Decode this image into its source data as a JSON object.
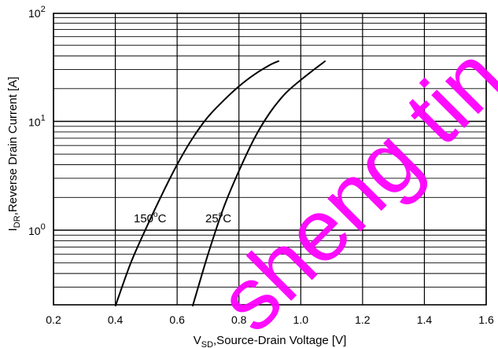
{
  "chart_data": {
    "type": "line",
    "xlabel": {
      "sym": "V",
      "sub": "SD",
      "rest": ",Source-Drain Voltage  [V]"
    },
    "ylabel": {
      "sym": "I",
      "sub": "DR",
      "rest": ",Reverse Drain Current  [A]"
    },
    "xlim": [
      0.2,
      1.6
    ],
    "ylim": [
      0.2,
      100
    ],
    "yscale": "log",
    "grid": true,
    "x_ticks": [
      "0.2",
      "0.4",
      "0.6",
      "0.8",
      "1.0",
      "1.2",
      "1.4",
      "1.6"
    ],
    "y_ticks": [
      {
        "base": "10",
        "exp": "0"
      },
      {
        "base": "10",
        "exp": "1"
      },
      {
        "base": "10",
        "exp": "2"
      }
    ],
    "series": [
      {
        "name": "150°C",
        "label": {
          "num": "150",
          "deg": "o",
          "unit": "C"
        },
        "x": [
          0.4,
          0.45,
          0.5,
          0.55,
          0.6,
          0.65,
          0.7,
          0.75,
          0.8,
          0.85,
          0.9,
          0.93
        ],
        "y": [
          0.2,
          0.5,
          1.05,
          2.1,
          4.0,
          7.0,
          11,
          15.5,
          21,
          27,
          33,
          36
        ]
      },
      {
        "name": "25°C",
        "label": {
          "num": "25",
          "deg": "o",
          "unit": "C"
        },
        "x": [
          0.65,
          0.7,
          0.75,
          0.8,
          0.85,
          0.9,
          0.95,
          1.0,
          1.05,
          1.08
        ],
        "y": [
          0.2,
          0.6,
          1.6,
          3.5,
          7.0,
          12,
          18,
          24,
          31,
          36
        ]
      }
    ]
  },
  "watermark": "sheng tin",
  "colors": {
    "axis": "#000000",
    "grid": "#000000",
    "curve": "#000000",
    "watermark": "#ff00ff"
  }
}
